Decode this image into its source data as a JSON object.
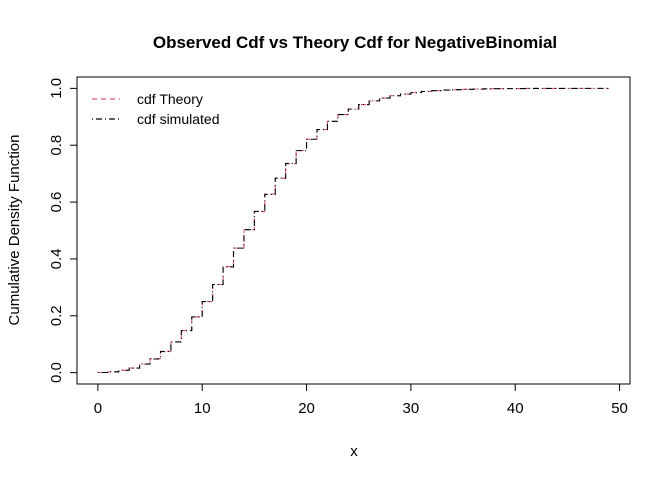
{
  "chart_data": {
    "type": "line",
    "title": "Observed Cdf vs Theory Cdf for NegativeBinomial",
    "xlabel": "x",
    "ylabel": "Cumulative Density Function",
    "xlim": [
      -2,
      51
    ],
    "ylim": [
      -0.04,
      1.04
    ],
    "xticks": [
      0,
      10,
      20,
      30,
      40,
      50
    ],
    "yticks": [
      0.0,
      0.2,
      0.4,
      0.6,
      0.8,
      1.0
    ],
    "xtick_labels": [
      "0",
      "10",
      "20",
      "30",
      "40",
      "50"
    ],
    "ytick_labels": [
      "0.0",
      "0.2",
      "0.4",
      "0.6",
      "0.8",
      "1.0"
    ],
    "legend_position": "top-left",
    "x": [
      0,
      1,
      2,
      3,
      4,
      5,
      6,
      7,
      8,
      9,
      10,
      11,
      12,
      13,
      14,
      15,
      16,
      17,
      18,
      19,
      20,
      21,
      22,
      23,
      24,
      25,
      26,
      27,
      28,
      29,
      30,
      31,
      32,
      33,
      34,
      35,
      36,
      37,
      38,
      39,
      40,
      41,
      42,
      43,
      44,
      45,
      46,
      47,
      48,
      49
    ],
    "series": [
      {
        "name": "cdf Theory",
        "color": "#DF536B",
        "linestyle": "dashed",
        "values": [
          0.0005,
          0.003,
          0.008,
          0.016,
          0.03,
          0.049,
          0.075,
          0.108,
          0.148,
          0.196,
          0.25,
          0.31,
          0.373,
          0.438,
          0.503,
          0.567,
          0.628,
          0.684,
          0.735,
          0.781,
          0.821,
          0.855,
          0.884,
          0.908,
          0.927,
          0.943,
          0.956,
          0.966,
          0.974,
          0.98,
          0.985,
          0.989,
          0.992,
          0.994,
          0.9955,
          0.9967,
          0.9976,
          0.9983,
          0.9988,
          0.9991,
          0.9994,
          0.9996,
          0.9997,
          0.9998,
          0.9999,
          0.9999,
          1.0,
          1.0,
          1.0,
          1.0
        ]
      },
      {
        "name": "cdf simulated",
        "color": "#000000",
        "linestyle": "dotdash",
        "values": [
          0.0005,
          0.003,
          0.008,
          0.016,
          0.03,
          0.048,
          0.074,
          0.108,
          0.148,
          0.196,
          0.25,
          0.31,
          0.372,
          0.438,
          0.503,
          0.567,
          0.627,
          0.684,
          0.736,
          0.781,
          0.821,
          0.855,
          0.884,
          0.908,
          0.927,
          0.943,
          0.956,
          0.966,
          0.974,
          0.98,
          0.985,
          0.989,
          0.992,
          0.994,
          0.9955,
          0.9967,
          0.9976,
          0.9983,
          0.9988,
          0.9991,
          0.9994,
          0.9996,
          0.9997,
          0.9998,
          0.9999,
          0.9999,
          1.0,
          1.0,
          1.0,
          1.0
        ]
      }
    ]
  }
}
